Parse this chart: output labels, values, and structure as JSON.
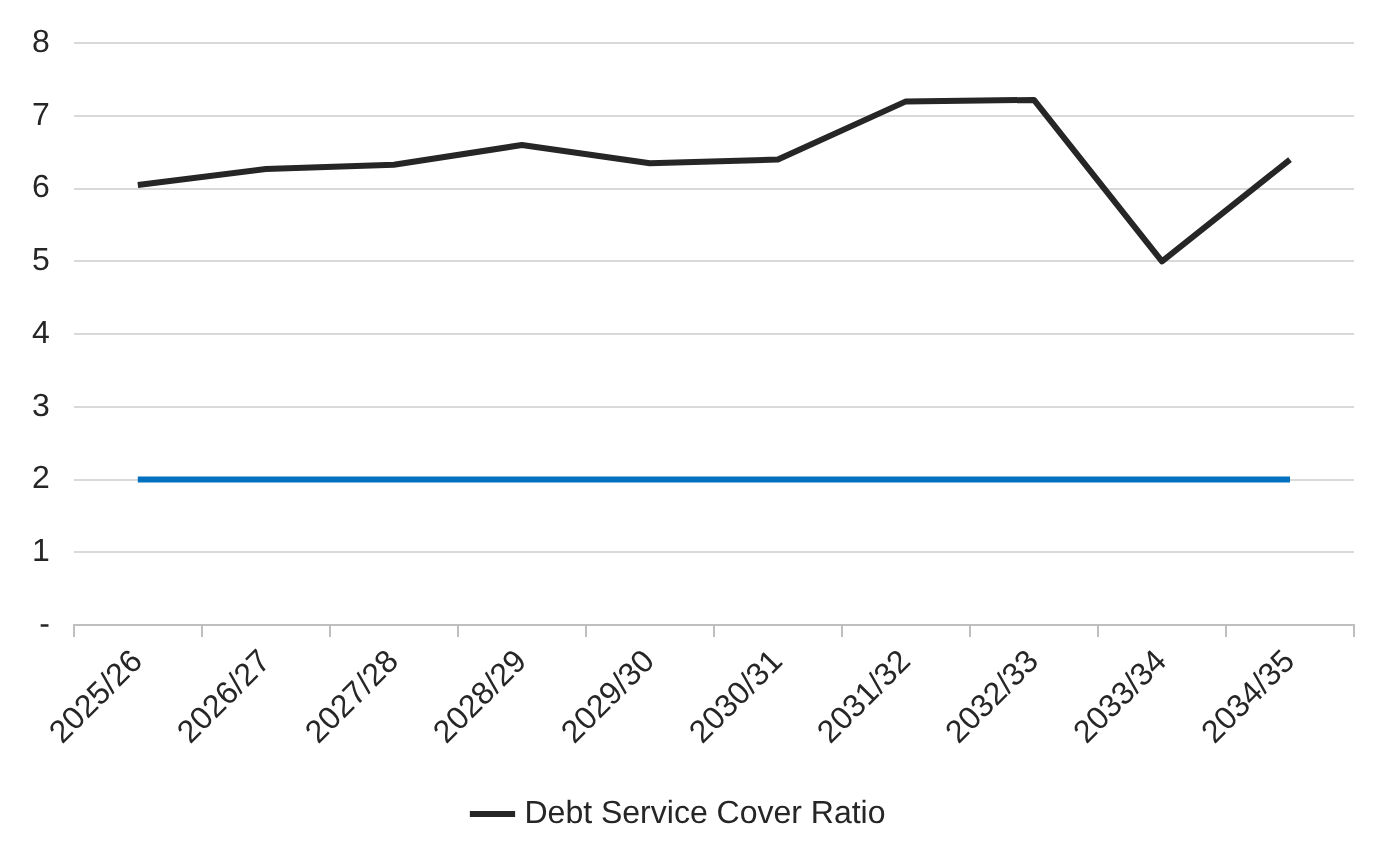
{
  "chart_data": {
    "type": "line",
    "categories": [
      "2025/26",
      "2026/27",
      "2027/28",
      "2028/29",
      "2029/30",
      "2030/31",
      "2031/32",
      "2032/33",
      "2033/34",
      "2034/35"
    ],
    "series": [
      {
        "name": "Debt Service Cover Ratio",
        "color": "#262626",
        "values": [
          6.05,
          6.27,
          6.33,
          6.6,
          6.35,
          6.4,
          7.2,
          7.22,
          5.0,
          6.4
        ]
      },
      {
        "color": "#0070c0",
        "values": [
          2,
          2,
          2,
          2,
          2,
          2,
          2,
          2,
          2,
          2
        ]
      }
    ],
    "ylim": [
      0,
      8
    ],
    "yticks": [
      {
        "value": 0,
        "label": "-"
      },
      1,
      2,
      3,
      4,
      5,
      6,
      7,
      8
    ],
    "grid": "y",
    "legend": "bottom",
    "marker": "none",
    "line_style": "solid"
  }
}
